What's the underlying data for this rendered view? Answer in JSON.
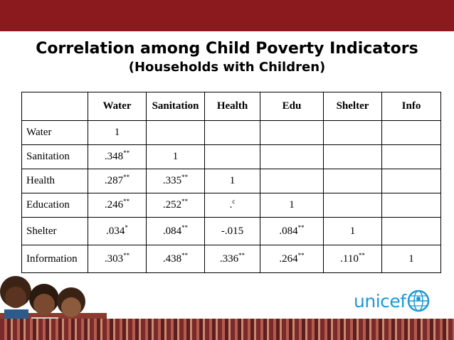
{
  "slide": {
    "title": "Correlation among Child Poverty Indicators",
    "subtitle": "(Households with Children)"
  },
  "table": {
    "headers": [
      "",
      "Water",
      "Sanitation",
      "Health",
      "Edu",
      "Shelter",
      "Info"
    ],
    "rows": [
      {
        "label": "Water",
        "cells": [
          {
            "v": "1",
            "s": ""
          },
          {
            "v": "",
            "s": ""
          },
          {
            "v": "",
            "s": ""
          },
          {
            "v": "",
            "s": ""
          },
          {
            "v": "",
            "s": ""
          },
          {
            "v": "",
            "s": ""
          }
        ]
      },
      {
        "label": "Sanitation",
        "cells": [
          {
            "v": ".348",
            "s": "**"
          },
          {
            "v": "1",
            "s": ""
          },
          {
            "v": "",
            "s": ""
          },
          {
            "v": "",
            "s": ""
          },
          {
            "v": "",
            "s": ""
          },
          {
            "v": "",
            "s": ""
          }
        ]
      },
      {
        "label": "Health",
        "cells": [
          {
            "v": ".287",
            "s": "**"
          },
          {
            "v": ".335",
            "s": "**"
          },
          {
            "v": "1",
            "s": ""
          },
          {
            "v": "",
            "s": ""
          },
          {
            "v": "",
            "s": ""
          },
          {
            "v": "",
            "s": ""
          }
        ]
      },
      {
        "label": "Education",
        "cells": [
          {
            "v": ".246",
            "s": "**"
          },
          {
            "v": ".252",
            "s": "**"
          },
          {
            "v": ".",
            "s": "c"
          },
          {
            "v": "1",
            "s": ""
          },
          {
            "v": "",
            "s": ""
          },
          {
            "v": "",
            "s": ""
          }
        ]
      },
      {
        "label": "Shelter",
        "cells": [
          {
            "v": ".034",
            "s": "*"
          },
          {
            "v": ".084",
            "s": "**"
          },
          {
            "v": "-.015",
            "s": ""
          },
          {
            "v": ".084",
            "s": "**"
          },
          {
            "v": "1",
            "s": ""
          },
          {
            "v": "",
            "s": ""
          }
        ]
      },
      {
        "label": "Information",
        "cells": [
          {
            "v": ".303",
            "s": "**"
          },
          {
            "v": ".438",
            "s": "**"
          },
          {
            "v": ".336",
            "s": "**"
          },
          {
            "v": ".264",
            "s": "**"
          },
          {
            "v": ".110",
            "s": "**"
          },
          {
            "v": "1",
            "s": ""
          }
        ]
      }
    ]
  },
  "logo": {
    "text": "unicef",
    "color": "#1c9ad6"
  },
  "colors": {
    "top_bar": "#8b1a1e"
  }
}
